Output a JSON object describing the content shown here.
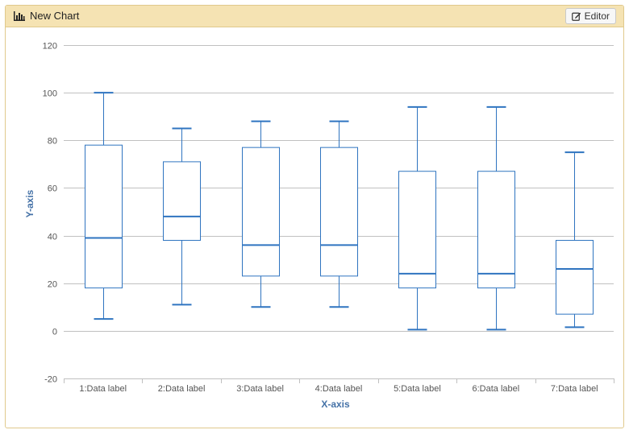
{
  "header": {
    "title": "New Chart",
    "title_icon": "bar-chart-icon",
    "editor_label": "Editor",
    "editor_icon": "edit-icon"
  },
  "colors": {
    "header_bg": "#f5e3b3",
    "header_border": "#e0c98c",
    "series": "#2f74c0",
    "axis_title": "#4572a7",
    "grid": "#c0c0c0",
    "tick_label": "#555555"
  },
  "chart_data": {
    "type": "boxplot",
    "title": "",
    "xlabel": "X-axis",
    "ylabel": "Y-axis",
    "ylim": [
      -20,
      120
    ],
    "yticks": [
      -20,
      0,
      20,
      40,
      60,
      80,
      100,
      120
    ],
    "grid": true,
    "legend": false,
    "categories": [
      "1:Data label",
      "2:Data label",
      "3:Data label",
      "4:Data label",
      "5:Data label",
      "6:Data label",
      "7:Data label"
    ],
    "boxes": [
      {
        "low": 5,
        "q1": 18,
        "median": 39,
        "q3": 78,
        "high": 100
      },
      {
        "low": 11,
        "q1": 38,
        "median": 48,
        "q3": 71,
        "high": 85
      },
      {
        "low": 10,
        "q1": 23,
        "median": 36,
        "q3": 77,
        "high": 88
      },
      {
        "low": 10,
        "q1": 23,
        "median": 36,
        "q3": 77,
        "high": 88
      },
      {
        "low": 0.5,
        "q1": 18,
        "median": 24,
        "q3": 67,
        "high": 94
      },
      {
        "low": 0.5,
        "q1": 18,
        "median": 24,
        "q3": 67,
        "high": 94
      },
      {
        "low": 1.5,
        "q1": 7,
        "median": 26,
        "q3": 38,
        "high": 75
      }
    ]
  }
}
